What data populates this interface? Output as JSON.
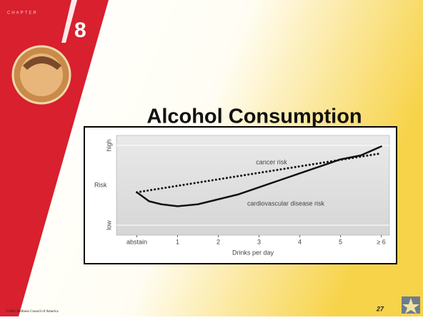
{
  "slide": {
    "chapter_label": "CHAPTER",
    "chapter_number": "8",
    "title": "Alcohol Consumption",
    "footer": "©2006 Wellness Council of America",
    "page_number": "27"
  },
  "chart_data": {
    "type": "line",
    "x_label": "Drinks per day",
    "y_label": "Risk",
    "xlim": [
      -0.5,
      6.2
    ],
    "ylim": [
      0,
      10
    ],
    "xticks": [
      {
        "value": 0,
        "label": "abstain"
      },
      1,
      2,
      3,
      4,
      5,
      {
        "value": 6,
        "label": "≥ 6"
      }
    ],
    "yticks": [
      {
        "value": 1,
        "label": "low"
      },
      {
        "value": 9,
        "label": "high"
      }
    ],
    "series": [
      {
        "name": "cancer risk",
        "color": "#111111",
        "style": "dotted",
        "x": [
          0,
          6
        ],
        "values": [
          4.3,
          8.2
        ]
      },
      {
        "name": "cardiovascular disease risk",
        "color": "#111111",
        "style": "solid",
        "x": [
          0,
          0.3,
          0.6,
          1,
          1.5,
          2,
          2.5,
          3,
          3.5,
          4,
          4.5,
          5,
          5.5,
          6
        ],
        "values": [
          4.3,
          3.4,
          3.1,
          2.9,
          3.1,
          3.6,
          4.1,
          4.8,
          5.5,
          6.2,
          6.9,
          7.6,
          8.0,
          8.9
        ]
      }
    ]
  }
}
